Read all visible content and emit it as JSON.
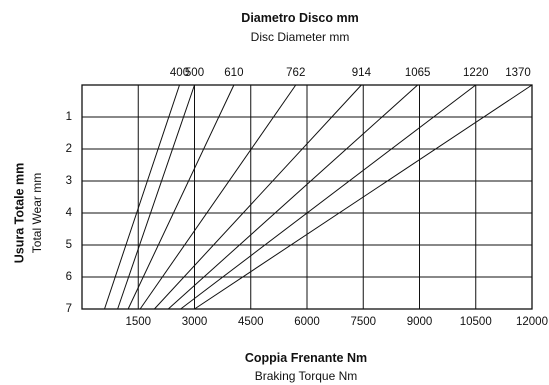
{
  "chart_data": {
    "type": "line",
    "top_title": "Diametro Disco  mm",
    "top_subtitle": "Disc Diameter  mm",
    "xlabel": "Coppia Frenante  Nm",
    "xlabel_sub": "Braking Torque  Nm",
    "ylabel": "Usura Totale  mm",
    "ylabel_sub": "Total Wear  mm",
    "x_ticks": [
      1500,
      3000,
      4500,
      6000,
      7500,
      9000,
      10500,
      12000
    ],
    "y_ticks": [
      1,
      2,
      3,
      4,
      5,
      6,
      7
    ],
    "xlim": [
      0,
      12000
    ],
    "ylim": [
      0,
      7
    ],
    "y_inverted": true,
    "grid": true,
    "series": [
      {
        "name": "400",
        "x": [
          2600,
          600
        ]
      },
      {
        "name": "500",
        "x": [
          3000,
          950
        ]
      },
      {
        "name": "610",
        "x": [
          4050,
          1230
        ]
      },
      {
        "name": "762",
        "x": [
          5700,
          1550
        ]
      },
      {
        "name": "914",
        "x": [
          7450,
          1930
        ]
      },
      {
        "name": "1065",
        "x": [
          8950,
          2300
        ]
      },
      {
        "name": "1220",
        "x": [
          10500,
          2630
        ]
      },
      {
        "name": "1370",
        "x": [
          12000,
          3000
        ]
      }
    ]
  }
}
